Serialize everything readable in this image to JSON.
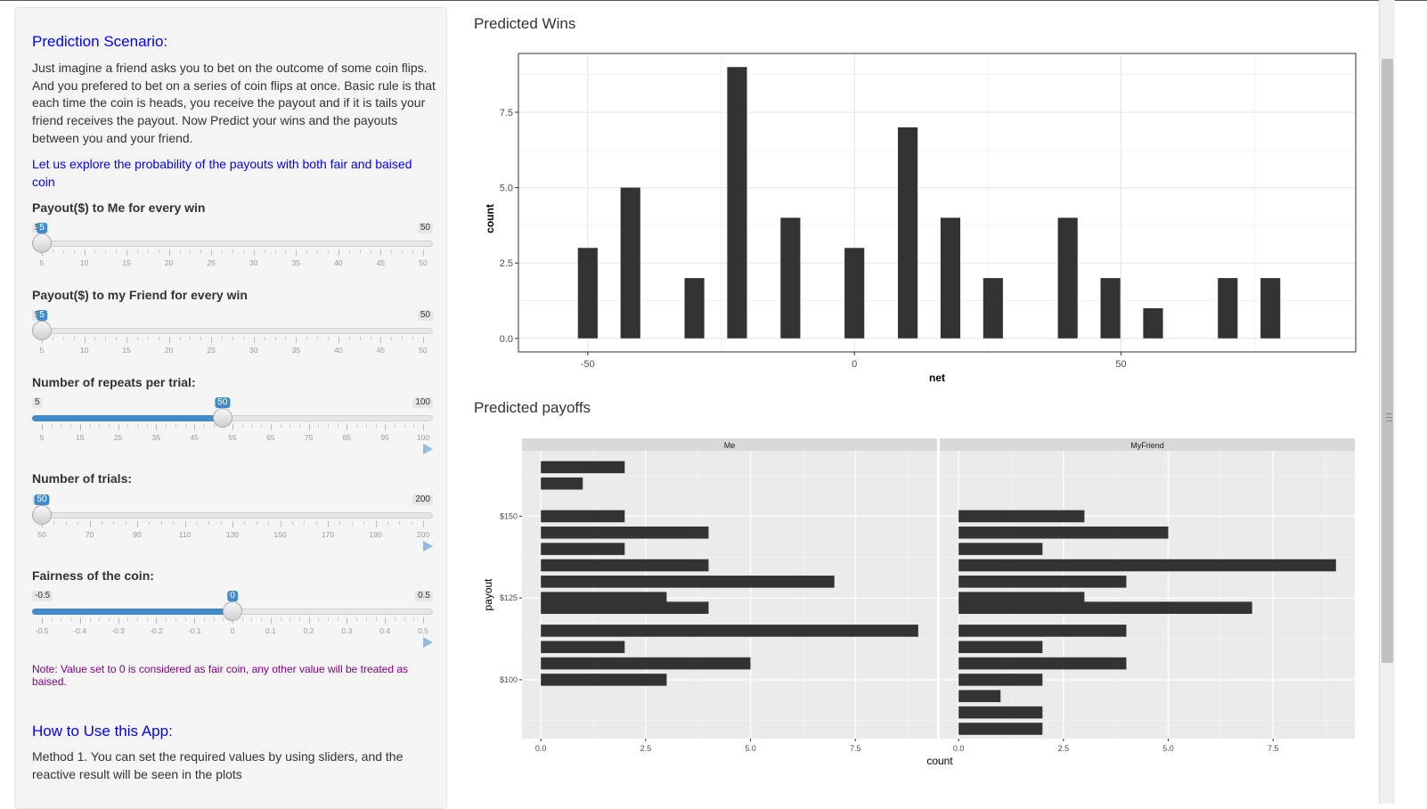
{
  "sidebar": {
    "scenario_title": "Prediction Scenario:",
    "scenario_text": "Just imagine a friend asks you to bet on the outcome of some coin flips. And you prefered to bet on a series of coin flips at once. Basic rule is that each time the coin is heads, you receive the payout and if it is tails your friend receives the payout. Now Predict your wins and the payouts between you and your friend.",
    "explore_text": "Let us explore the probability of the payouts with both fair and baised coin",
    "sliders": [
      {
        "label": "Payout($) to Me for every win",
        "min_label": "5",
        "max_label": "50",
        "value_label": "5",
        "min": 5,
        "max": 50,
        "value": 5,
        "grid": [
          "5",
          "10",
          "15",
          "20",
          "25",
          "30",
          "35",
          "40",
          "45",
          "50"
        ],
        "filled": false,
        "play": false
      },
      {
        "label": "Payout($) to my Friend for every win",
        "min_label": "5",
        "max_label": "50",
        "value_label": "5",
        "min": 5,
        "max": 50,
        "value": 5,
        "grid": [
          "5",
          "10",
          "15",
          "20",
          "25",
          "30",
          "35",
          "40",
          "45",
          "50"
        ],
        "filled": false,
        "play": false
      },
      {
        "label": "Number of repeats per trial:",
        "min_label": "5",
        "max_label": "100",
        "value_label": "50",
        "min": 5,
        "max": 100,
        "value": 50,
        "grid": [
          "5",
          "15",
          "25",
          "35",
          "45",
          "55",
          "65",
          "75",
          "85",
          "95",
          "100"
        ],
        "filled": true,
        "play": true
      },
      {
        "label": "Number of trials:",
        "min_label": "50",
        "max_label": "200",
        "value_label": "50",
        "min": 50,
        "max": 200,
        "value": 50,
        "grid": [
          "50",
          "70",
          "90",
          "110",
          "130",
          "150",
          "170",
          "190",
          "200"
        ],
        "filled": false,
        "play": true
      },
      {
        "label": "Fairness of the coin:",
        "min_label": "-0.5",
        "max_label": "0.5",
        "value_label": "0",
        "min": -0.5,
        "max": 0.5,
        "value": 0,
        "grid": [
          "-0.5",
          "-0.4",
          "-0.3",
          "-0.2",
          "-0.1",
          "0",
          "0.1",
          "0.2",
          "0.3",
          "0.4",
          "0.5"
        ],
        "filled": true,
        "play": true
      }
    ],
    "note": "Note: Value set to 0 is considered as fair coin, any other value will be treated as baised.",
    "howto_title": "How to Use this App:",
    "howto_text": "Method 1. You can set the required values by using sliders, and the reactive result will be seen in the plots"
  },
  "colors": {
    "accent": "#428bca",
    "title_blue": "#0000ff",
    "note_purple": "#800080",
    "bar": "#333333",
    "panel_bg": "#ebebeb",
    "strip_bg": "#d9d9d9"
  },
  "chart_data": [
    {
      "type": "bar",
      "title": "Predicted Wins",
      "xlabel": "net",
      "ylabel": "count",
      "x": [
        -50,
        -42,
        -30,
        -22,
        -12,
        0,
        10,
        18,
        26,
        40,
        48,
        56,
        70,
        78
      ],
      "values": [
        3,
        5,
        2,
        9,
        4,
        3,
        7,
        4,
        2,
        4,
        2,
        1,
        2,
        2
      ],
      "xlim": [
        -63,
        94
      ],
      "ylim": [
        -0.45,
        9.45
      ],
      "xticks": [
        -50,
        0,
        50
      ],
      "xtick_labels": [
        "-50",
        "0",
        "50"
      ],
      "yticks": [
        0,
        2.5,
        5,
        7.5
      ],
      "ytick_labels": [
        "0.0",
        "2.5",
        "5.0",
        "7.5"
      ],
      "grid": true
    },
    {
      "type": "bar",
      "title": "Predicted payoffs",
      "orientation": "horizontal",
      "xlabel": "count",
      "ylabel": "payout",
      "facets": [
        "Me",
        "MyFriend"
      ],
      "y": [
        165,
        160,
        150,
        145,
        140,
        135,
        130,
        125,
        122,
        115,
        110,
        105,
        100,
        95,
        90
      ],
      "series": [
        {
          "name": "Me",
          "values": [
            2,
            1,
            2,
            4,
            2,
            4,
            7,
            3,
            4,
            9,
            2,
            5,
            3,
            0,
            0
          ]
        },
        {
          "name": "MyFriend",
          "values": [
            0,
            0,
            3,
            5,
            2,
            9,
            4,
            3,
            7,
            4,
            2,
            4,
            2,
            1,
            2
          ]
        }
      ],
      "extra_bar": {
        "facet": "MyFriend",
        "payout": 85,
        "count": 2
      },
      "xlim": [
        -0.45,
        9.45
      ],
      "ylim": [
        82,
        170
      ],
      "xticks": [
        0,
        2.5,
        5,
        7.5
      ],
      "xtick_labels": [
        "0.0",
        "2.5",
        "5.0",
        "7.5"
      ],
      "yticks": [
        100,
        125,
        150
      ],
      "ytick_labels": [
        "$100",
        "$125",
        "$150"
      ],
      "grid": true
    }
  ]
}
